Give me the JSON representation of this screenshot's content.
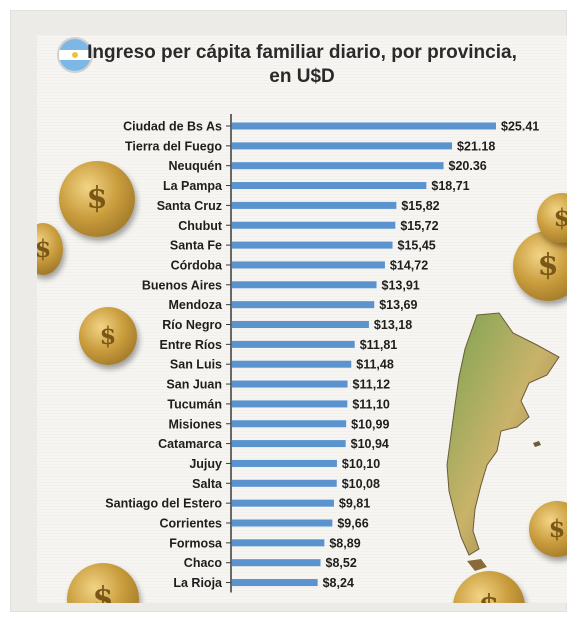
{
  "title_line1": "Ingreso per cápita familiar diario, por provincia,",
  "title_line2": "en U$D",
  "chart_data": {
    "type": "bar",
    "orientation": "horizontal",
    "categories": [
      "Ciudad de Bs As",
      "Tierra del Fuego",
      "Neuquén",
      "La Pampa",
      "Santa Cruz",
      "Chubut",
      "Santa Fe",
      "Córdoba",
      "Buenos Aires",
      "Mendoza",
      "Río Negro",
      "Entre Ríos",
      "San Luis",
      "San Juan",
      "Tucumán",
      "Misiones",
      "Catamarca",
      "Jujuy",
      "Salta",
      "Santiago del Estero",
      "Corrientes",
      "Formosa",
      "Chaco",
      "La Rioja"
    ],
    "values": [
      25.41,
      21.18,
      20.36,
      18.71,
      15.82,
      15.72,
      15.45,
      14.72,
      13.91,
      13.69,
      13.18,
      11.81,
      11.48,
      11.12,
      11.1,
      10.99,
      10.94,
      10.1,
      10.08,
      9.81,
      9.66,
      8.89,
      8.52,
      8.24
    ],
    "value_labels": [
      "$25.41",
      "$21.18",
      "$20.36",
      "$18,71",
      "$15,82",
      "$15,72",
      "$15,45",
      "$14,72",
      "$13,91",
      "$13,69",
      "$13,18",
      "$11,81",
      "$11,48",
      "$11,12",
      "$11,10",
      "$10,99",
      "$10,94",
      "$10,10",
      "$10,08",
      "$9,81",
      "$9,66",
      "$8,89",
      "$8,52",
      "$8,24"
    ],
    "bar_color": "#5b93cf",
    "axis_color": "#3a3a3a",
    "xlim": [
      0,
      25.41
    ]
  }
}
